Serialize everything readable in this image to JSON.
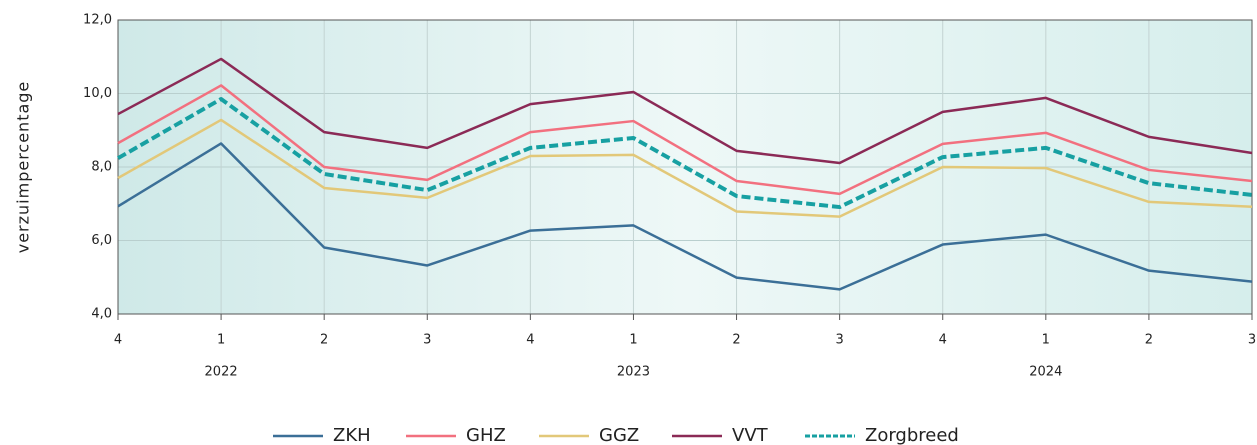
{
  "chart_data": {
    "type": "line",
    "y_label": "verzuimpercentage",
    "categories": [
      "4",
      "1",
      "2",
      "3",
      "4",
      "1",
      "2",
      "3",
      "4",
      "1",
      "2",
      "3"
    ],
    "years": [
      null,
      "2022",
      null,
      null,
      null,
      "2023",
      null,
      null,
      null,
      "2024",
      null,
      null
    ],
    "ylim": [
      4,
      12
    ],
    "yticks": [
      {
        "value": 4,
        "label": "4,0"
      },
      {
        "value": 6,
        "label": "6,0"
      },
      {
        "value": 8,
        "label": "8,0"
      },
      {
        "value": 10,
        "label": "10,0"
      },
      {
        "value": 12,
        "label": "12,0"
      }
    ],
    "grid": true,
    "legend": "bottom",
    "series": [
      {
        "name": "ZKH",
        "color": "#3b6f97",
        "dashed": false,
        "values": [
          6.93,
          8.64,
          5.81,
          5.32,
          6.27,
          6.41,
          4.99,
          4.67,
          5.89,
          6.16,
          5.18,
          4.88
        ]
      },
      {
        "name": "GHZ",
        "color": "#f2707f",
        "dashed": false,
        "values": [
          8.65,
          10.22,
          8.0,
          7.65,
          8.95,
          9.25,
          7.62,
          7.27,
          8.63,
          8.93,
          7.92,
          7.62
        ]
      },
      {
        "name": "GGZ",
        "color": "#e2c879",
        "dashed": false,
        "values": [
          7.7,
          9.28,
          7.43,
          7.16,
          8.3,
          8.33,
          6.79,
          6.65,
          8.0,
          7.97,
          7.05,
          6.92
        ]
      },
      {
        "name": "VVT",
        "color": "#8b2a56",
        "dashed": false,
        "values": [
          9.44,
          10.94,
          8.95,
          8.52,
          9.71,
          10.04,
          8.44,
          8.11,
          9.5,
          9.88,
          8.82,
          8.38
        ]
      },
      {
        "name": "Zorgbreed",
        "color": "#17a0a2",
        "dashed": true,
        "values": [
          8.24,
          9.85,
          7.81,
          7.37,
          8.52,
          8.79,
          7.21,
          6.91,
          8.27,
          8.52,
          7.56,
          7.24
        ]
      }
    ]
  }
}
